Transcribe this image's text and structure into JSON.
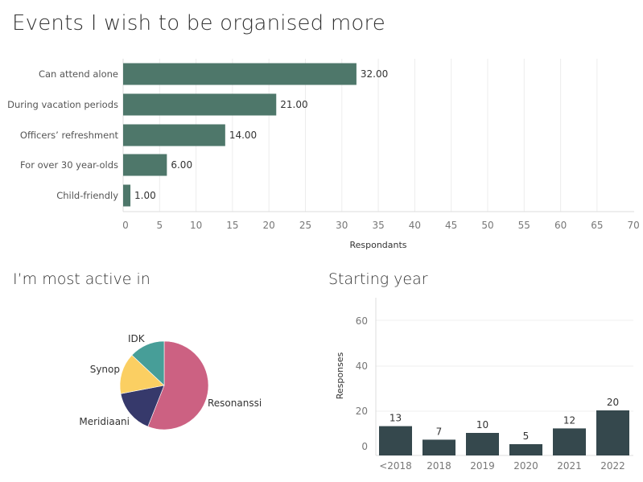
{
  "chart_data": [
    {
      "type": "bar",
      "orientation": "horizontal",
      "title": "Events I wish to be organised more",
      "categories": [
        "Can attend alone",
        "During vacation periods",
        "Officers’ refreshment",
        "For over 30 year-olds",
        "Child-friendly"
      ],
      "values": [
        32,
        21,
        14,
        6,
        1
      ],
      "value_labels": [
        "32.00",
        "21.00",
        "14.00",
        "6.00",
        "1.00"
      ],
      "xlabel": "Respondants",
      "ylabel": "",
      "xlim": [
        0,
        70
      ],
      "xticks": [
        "0",
        "5",
        "10",
        "15",
        "20",
        "25",
        "30",
        "35",
        "40",
        "45",
        "50",
        "55",
        "60",
        "65",
        "70"
      ],
      "grid": true,
      "color": "#4e776a"
    },
    {
      "type": "pie",
      "title": "I’m most active in",
      "labels": [
        "Resonanssi",
        "Meridiaani",
        "Synop",
        "IDK"
      ],
      "values": [
        56,
        16,
        15,
        13
      ],
      "colors": [
        "#cc6182",
        "#36396b",
        "#fbcf62",
        "#479e98"
      ]
    },
    {
      "type": "bar",
      "title": "Starting year",
      "categories": [
        "<2018",
        "2018",
        "2019",
        "2020",
        "2021",
        "2022"
      ],
      "values": [
        13,
        7,
        10,
        5,
        12,
        20
      ],
      "value_labels": [
        "13",
        "7",
        "10",
        "5",
        "12",
        "20"
      ],
      "xlabel": "",
      "ylabel": "Responses",
      "yticks": [
        "0",
        "20",
        "40",
        "60"
      ],
      "ylim": [
        0,
        60
      ],
      "grid": true,
      "color": "#35484d"
    }
  ]
}
